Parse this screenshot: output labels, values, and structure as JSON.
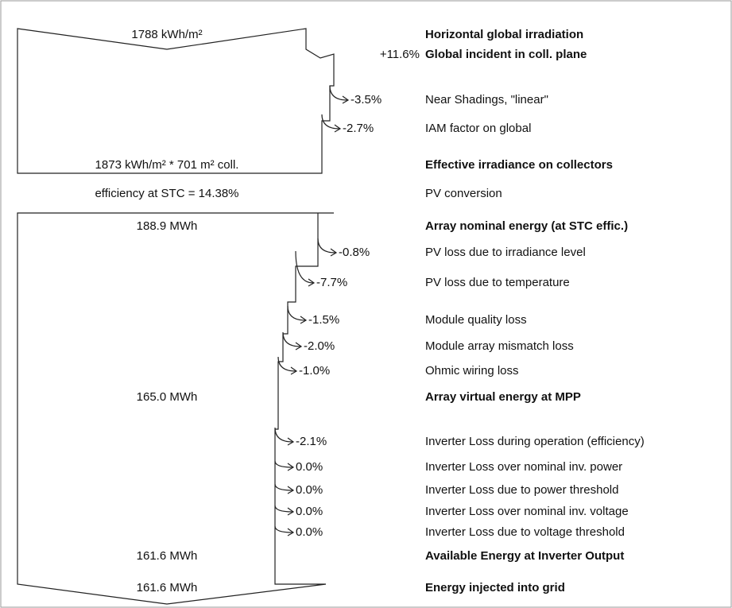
{
  "rows": [
    {
      "left": "1788 kWh/m²",
      "label": "Horizontal global irradiation",
      "bold": true
    },
    {
      "loss": "+11.6%",
      "label": "Global incident in coll. plane",
      "bold": true
    },
    {
      "loss": "-3.5%",
      "label": "Near Shadings, \"linear\""
    },
    {
      "loss": "-2.7%",
      "label": "IAM factor on global"
    },
    {
      "left": "1873 kWh/m² * 701 m² coll.",
      "label": "Effective irradiance on collectors",
      "bold": true
    },
    {
      "left": "efficiency at STC = 14.38%",
      "label": "PV conversion"
    },
    {
      "left": "188.9 MWh",
      "label": "Array nominal energy (at STC effic.)",
      "bold": true
    },
    {
      "loss": "-0.8%",
      "label": "PV loss due to irradiance level"
    },
    {
      "loss": "-7.7%",
      "label": "PV loss due to temperature"
    },
    {
      "loss": "-1.5%",
      "label": "Module quality loss"
    },
    {
      "loss": "-2.0%",
      "label": "Module array mismatch loss"
    },
    {
      "loss": "-1.0%",
      "label": "Ohmic wiring loss"
    },
    {
      "left": "165.0 MWh",
      "label": "Array virtual energy at MPP",
      "bold": true
    },
    {
      "loss": "-2.1%",
      "label": "Inverter Loss during operation (efficiency)"
    },
    {
      "loss": "0.0%",
      "label": "Inverter Loss over nominal inv. power"
    },
    {
      "loss": "0.0%",
      "label": "Inverter Loss due to power threshold"
    },
    {
      "loss": "0.0%",
      "label": "Inverter Loss over nominal inv. voltage"
    },
    {
      "loss": "0.0%",
      "label": "Inverter Loss due to voltage threshold"
    },
    {
      "left": "161.6 MWh",
      "label": "Available Energy at Inverter Output",
      "bold": true
    },
    {
      "left": "161.6 MWh",
      "label": "Energy injected into grid",
      "bold": true
    }
  ]
}
